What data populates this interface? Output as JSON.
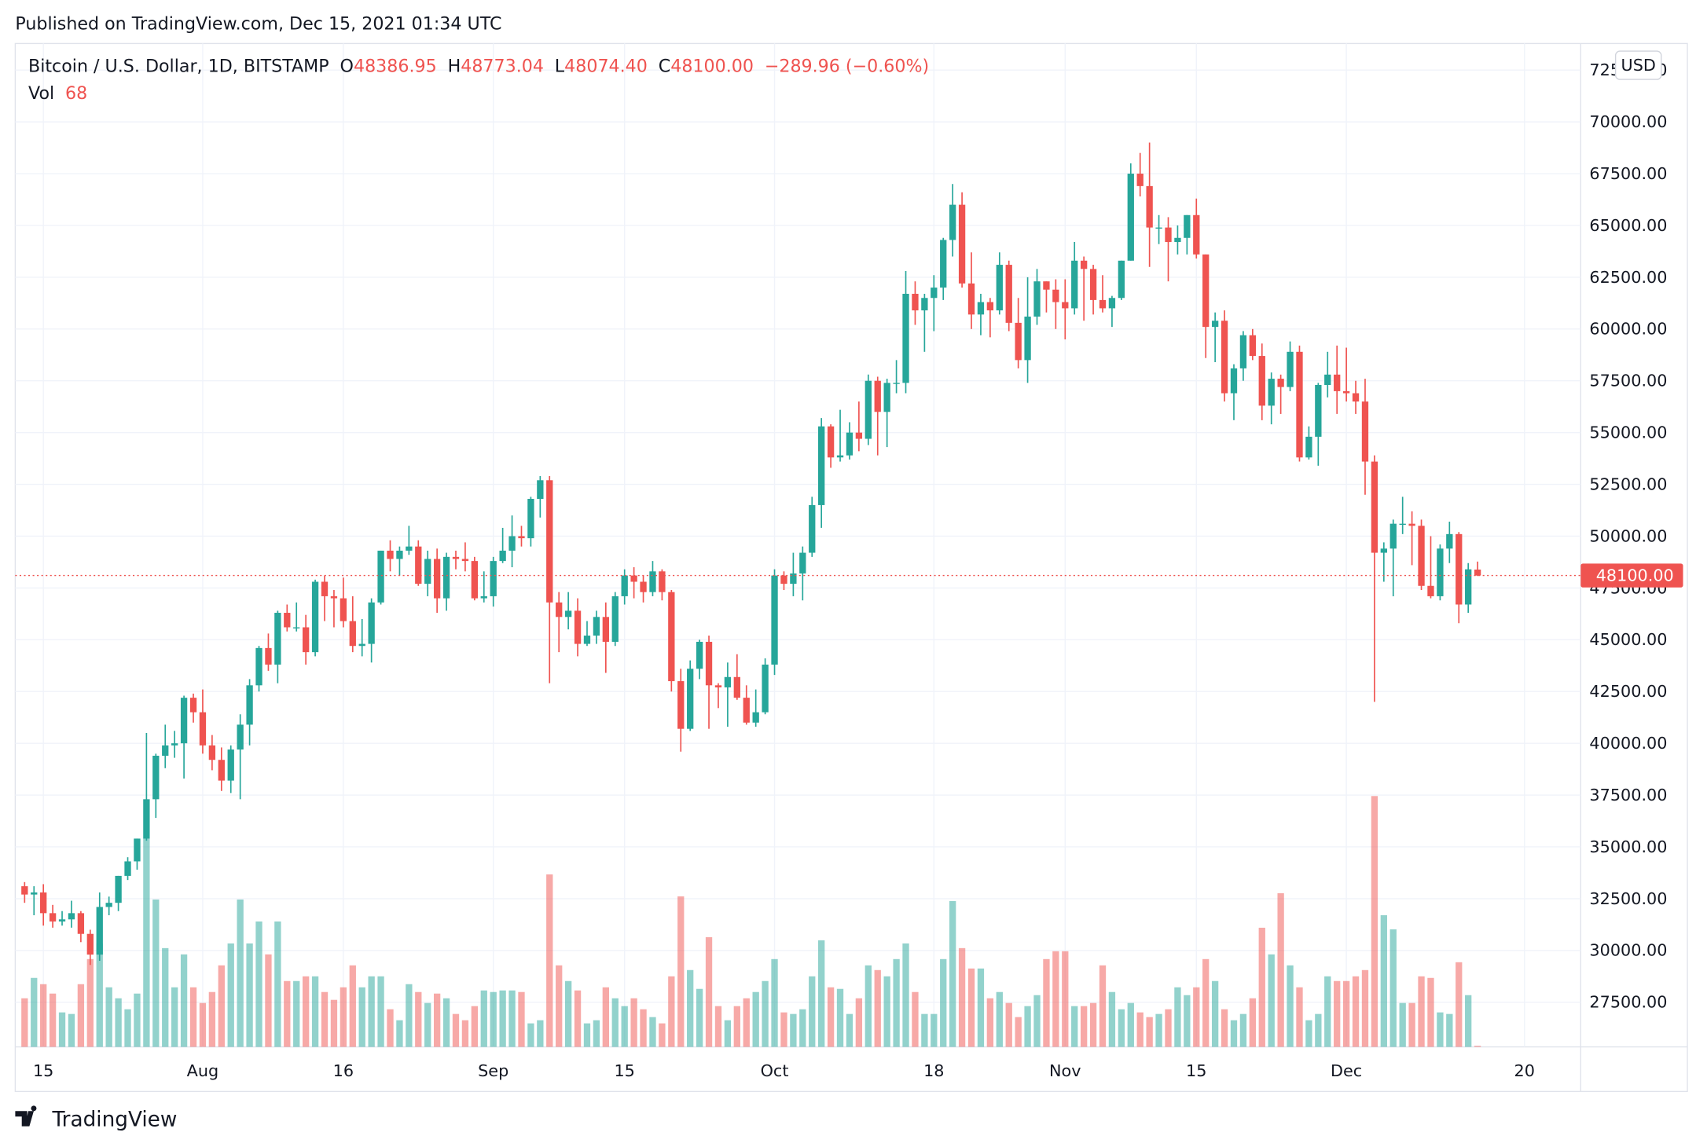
{
  "header": {
    "published": "Published on TradingView.com, Dec 15, 2021 01:34 UTC",
    "brand": "TradingView"
  },
  "chart_data": {
    "type": "candlestick",
    "legend": {
      "symbol": "Bitcoin / U.S. Dollar, 1D, BITSTAMP",
      "o_label": "O",
      "o": "48386.95",
      "h_label": "H",
      "h": "48773.04",
      "l_label": "L",
      "l": "48074.40",
      "c_label": "C",
      "c": "48100.00",
      "change": "−289.96 (−0.60%)",
      "vol_label": "Vol",
      "vol": "68"
    },
    "currency": "USD",
    "up_color": "#26a69a",
    "down_color": "#ef5350",
    "x": [
      "2021-07-13",
      "2021-07-14",
      "2021-07-15",
      "2021-07-16",
      "2021-07-17",
      "2021-07-18",
      "2021-07-19",
      "2021-07-20",
      "2021-07-21",
      "2021-07-22",
      "2021-07-23",
      "2021-07-24",
      "2021-07-25",
      "2021-07-26",
      "2021-07-27",
      "2021-07-28",
      "2021-07-29",
      "2021-07-30",
      "2021-07-31",
      "2021-08-01",
      "2021-08-02",
      "2021-08-03",
      "2021-08-04",
      "2021-08-05",
      "2021-08-06",
      "2021-08-07",
      "2021-08-08",
      "2021-08-09",
      "2021-08-10",
      "2021-08-11",
      "2021-08-12",
      "2021-08-13",
      "2021-08-14",
      "2021-08-15",
      "2021-08-16",
      "2021-08-17",
      "2021-08-18",
      "2021-08-19",
      "2021-08-20",
      "2021-08-21",
      "2021-08-22",
      "2021-08-23",
      "2021-08-24",
      "2021-08-25",
      "2021-08-26",
      "2021-08-27",
      "2021-08-28",
      "2021-08-29",
      "2021-08-30",
      "2021-08-31",
      "2021-09-01",
      "2021-09-02",
      "2021-09-03",
      "2021-09-04",
      "2021-09-05",
      "2021-09-06",
      "2021-09-07",
      "2021-09-08",
      "2021-09-09",
      "2021-09-10",
      "2021-09-11",
      "2021-09-12",
      "2021-09-13",
      "2021-09-14",
      "2021-09-15",
      "2021-09-16",
      "2021-09-17",
      "2021-09-18",
      "2021-09-19",
      "2021-09-20",
      "2021-09-21",
      "2021-09-22",
      "2021-09-23",
      "2021-09-24",
      "2021-09-25",
      "2021-09-26",
      "2021-09-27",
      "2021-09-28",
      "2021-09-29",
      "2021-09-30",
      "2021-10-01",
      "2021-10-02",
      "2021-10-03",
      "2021-10-04",
      "2021-10-05",
      "2021-10-06",
      "2021-10-07",
      "2021-10-08",
      "2021-10-09",
      "2021-10-10",
      "2021-10-11",
      "2021-10-12",
      "2021-10-13",
      "2021-10-14",
      "2021-10-15",
      "2021-10-16",
      "2021-10-17",
      "2021-10-18",
      "2021-10-19",
      "2021-10-20",
      "2021-10-21",
      "2021-10-22",
      "2021-10-23",
      "2021-10-24",
      "2021-10-25",
      "2021-10-26",
      "2021-10-27",
      "2021-10-28",
      "2021-10-29",
      "2021-10-30",
      "2021-10-31",
      "2021-11-01",
      "2021-11-02",
      "2021-11-03",
      "2021-11-04",
      "2021-11-05",
      "2021-11-06",
      "2021-11-07",
      "2021-11-08",
      "2021-11-09",
      "2021-11-10",
      "2021-11-11",
      "2021-11-12",
      "2021-11-13",
      "2021-11-14",
      "2021-11-15",
      "2021-11-16",
      "2021-11-17",
      "2021-11-18",
      "2021-11-19",
      "2021-11-20",
      "2021-11-21",
      "2021-11-22",
      "2021-11-23",
      "2021-11-24",
      "2021-11-25",
      "2021-11-26",
      "2021-11-27",
      "2021-11-28",
      "2021-11-29",
      "2021-11-30",
      "2021-12-01",
      "2021-12-02",
      "2021-12-03",
      "2021-12-04",
      "2021-12-05",
      "2021-12-06",
      "2021-12-07",
      "2021-12-08",
      "2021-12-09",
      "2021-12-10",
      "2021-12-11",
      "2021-12-12",
      "2021-12-13",
      "2021-12-14",
      "2021-12-15"
    ],
    "open": [
      33100,
      32700,
      32800,
      31800,
      31400,
      31500,
      31800,
      30800,
      29800,
      32100,
      32300,
      33600,
      34300,
      35400,
      37300,
      39400,
      39900,
      40000,
      42200,
      41500,
      39900,
      39200,
      38200,
      39700,
      40900,
      42800,
      44600,
      43800,
      46300,
      45600,
      45600,
      44400,
      47800,
      47100,
      47000,
      45900,
      44700,
      44800,
      46800,
      49300,
      48900,
      49300,
      49500,
      47700,
      48900,
      47000,
      49000,
      48900,
      48800,
      47000,
      47100,
      48800,
      49300,
      50000,
      49900,
      51800,
      52700,
      46800,
      46100,
      46400,
      44800,
      45200,
      46100,
      44900,
      47100,
      48100,
      47800,
      47300,
      48300,
      47300,
      43000,
      40700,
      43600,
      44900,
      42800,
      42700,
      43200,
      42200,
      41000,
      41500,
      43800,
      48100,
      47700,
      48200,
      49200,
      51500,
      55300,
      53800,
      53900,
      55000,
      54700,
      57500,
      56000,
      57400,
      57400,
      61700,
      60900,
      61500,
      62000,
      64300,
      66000,
      62200,
      60700,
      61300,
      60900,
      63100,
      60300,
      58500,
      60600,
      62300,
      61900,
      61300,
      61000,
      63300,
      62900,
      61400,
      61000,
      61500,
      63300,
      67500,
      66900,
      64900,
      64900,
      64200,
      64400,
      65500,
      63600,
      60100,
      60400,
      56900,
      58100,
      59700,
      58700,
      56300,
      57600,
      57200,
      58900,
      53800,
      54800,
      57300,
      57800,
      57000,
      56900,
      56500,
      53600,
      49200,
      49400,
      50600,
      50600,
      50500,
      47600,
      47100,
      49400,
      50100,
      46700,
      48386.95
    ],
    "high": [
      33300,
      33100,
      33200,
      32200,
      31900,
      32400,
      31900,
      31000,
      32800,
      32600,
      33600,
      34500,
      35400,
      40500,
      39500,
      40900,
      40600,
      42300,
      42400,
      42600,
      40400,
      39800,
      39900,
      41400,
      43100,
      44700,
      45300,
      46400,
      46700,
      46800,
      46200,
      47900,
      48100,
      47400,
      48000,
      47100,
      46000,
      47000,
      49300,
      49800,
      49500,
      50500,
      49800,
      49300,
      49400,
      49200,
      49300,
      49700,
      49000,
      48300,
      49000,
      50400,
      51000,
      50500,
      51900,
      52900,
      52900,
      47300,
      47300,
      47000,
      45900,
      46400,
      46800,
      47300,
      48400,
      48500,
      48100,
      48800,
      48400,
      47400,
      43600,
      44000,
      45000,
      45200,
      42900,
      43900,
      44300,
      42800,
      42600,
      44100,
      48400,
      48300,
      49200,
      49500,
      51900,
      55700,
      55400,
      56100,
      55500,
      56500,
      57800,
      57700,
      57600,
      58500,
      62800,
      62300,
      61700,
      62600,
      64400,
      67000,
      66600,
      63700,
      61700,
      61500,
      63700,
      63300,
      61500,
      62500,
      62900,
      62300,
      62400,
      62400,
      64200,
      63500,
      63100,
      62600,
      61600,
      63300,
      68000,
      68500,
      69000,
      65500,
      65400,
      65000,
      65500,
      66300,
      63600,
      60800,
      60900,
      58300,
      59900,
      60000,
      59300,
      57900,
      57800,
      59400,
      59200,
      55300,
      57400,
      58900,
      59200,
      59100,
      57500,
      57600,
      53900,
      49700,
      50800,
      51900,
      51200,
      50800,
      50000,
      49600,
      50700,
      50200,
      48700,
      48773.04
    ],
    "low": [
      32300,
      31700,
      31200,
      31100,
      31200,
      31100,
      30400,
      29300,
      29500,
      31700,
      31900,
      33400,
      33900,
      35300,
      36400,
      38800,
      39300,
      38300,
      41000,
      39500,
      38700,
      37700,
      37600,
      37300,
      39900,
      42500,
      43500,
      42900,
      45400,
      45400,
      43800,
      44200,
      45900,
      45600,
      45600,
      44400,
      44200,
      43900,
      46700,
      48300,
      48100,
      49100,
      47600,
      47100,
      46300,
      46400,
      48400,
      48300,
      46900,
      46800,
      46600,
      48700,
      48500,
      49500,
      49500,
      50900,
      42900,
      44400,
      45500,
      44200,
      44700,
      44800,
      43400,
      44700,
      46700,
      47000,
      46800,
      47100,
      46900,
      42500,
      39600,
      40600,
      43100,
      40700,
      41700,
      40800,
      42100,
      40900,
      40800,
      41400,
      43300,
      47400,
      47100,
      46900,
      49000,
      50400,
      53300,
      53600,
      53700,
      54100,
      54400,
      53900,
      54300,
      56900,
      56900,
      60200,
      58900,
      59900,
      61400,
      63500,
      62000,
      60000,
      59700,
      59600,
      60700,
      59900,
      58100,
      57400,
      60200,
      60800,
      60000,
      59500,
      60700,
      60400,
      60700,
      60800,
      60100,
      61400,
      63300,
      66400,
      63000,
      64100,
      62300,
      63600,
      63600,
      63400,
      58600,
      58400,
      56500,
      55600,
      57500,
      58500,
      55600,
      55400,
      55900,
      57000,
      53600,
      53700,
      53400,
      56700,
      55900,
      56500,
      55900,
      52000,
      42000,
      47800,
      47100,
      50100,
      48600,
      47400,
      47000,
      46900,
      48700,
      45800,
      46300,
      48074.4
    ],
    "close": [
      32700,
      32800,
      31800,
      31400,
      31500,
      31800,
      30800,
      29800,
      32100,
      32300,
      33600,
      34300,
      35400,
      37300,
      39400,
      39900,
      40000,
      42200,
      41500,
      39900,
      39200,
      38200,
      39700,
      40900,
      42800,
      44600,
      43800,
      46300,
      45600,
      45600,
      44400,
      47800,
      47100,
      47000,
      45900,
      44700,
      44800,
      46800,
      49300,
      48900,
      49300,
      49500,
      47700,
      48900,
      47000,
      49000,
      48900,
      48800,
      47000,
      47100,
      48800,
      49300,
      50000,
      49900,
      51800,
      52700,
      46800,
      46100,
      46400,
      44800,
      45200,
      46100,
      44900,
      47100,
      48100,
      47800,
      47300,
      48300,
      47300,
      43000,
      40700,
      43600,
      44900,
      42800,
      42700,
      43200,
      42200,
      41000,
      41500,
      43800,
      48100,
      47700,
      48200,
      49200,
      51500,
      55300,
      53800,
      53900,
      55000,
      54700,
      57500,
      56000,
      57400,
      57400,
      61700,
      60900,
      61500,
      62000,
      64300,
      66000,
      62200,
      60700,
      61300,
      60900,
      63100,
      60300,
      58500,
      60600,
      62300,
      61900,
      61300,
      61000,
      63300,
      62900,
      61400,
      61000,
      61500,
      63300,
      67500,
      66900,
      64900,
      64900,
      64200,
      64400,
      65500,
      63600,
      60100,
      60400,
      56900,
      58100,
      59700,
      58700,
      56300,
      57600,
      57200,
      58900,
      53800,
      54800,
      57300,
      57800,
      57000,
      56900,
      56500,
      53600,
      49200,
      49400,
      50600,
      50600,
      50500,
      47600,
      47100,
      49400,
      50100,
      46700,
      48400,
      48100
    ],
    "volume": [
      3100,
      4400,
      4000,
      3400,
      2200,
      2100,
      4000,
      5600,
      6600,
      3800,
      3100,
      2400,
      3400,
      13300,
      9400,
      6300,
      3800,
      5900,
      3800,
      2800,
      3500,
      5200,
      6600,
      9400,
      6600,
      8000,
      5900,
      8000,
      4200,
      4200,
      4500,
      4500,
      3500,
      3000,
      3800,
      5200,
      3800,
      4500,
      4500,
      2400,
      1700,
      4000,
      3500,
      2800,
      3400,
      3100,
      2100,
      1700,
      2600,
      3600,
      3500,
      3600,
      3600,
      3500,
      1500,
      1700,
      11000,
      5200,
      4200,
      3600,
      1500,
      1700,
      3800,
      3100,
      2600,
      3100,
      2400,
      1900,
      1500,
      4500,
      9600,
      4900,
      3700,
      7000,
      2600,
      1700,
      2600,
      3100,
      3500,
      4200,
      5600,
      2200,
      2100,
      2400,
      4500,
      6800,
      3800,
      3700,
      2100,
      3100,
      5200,
      4900,
      4500,
      5600,
      6600,
      3500,
      2100,
      2100,
      5600,
      9300,
      6300,
      5000,
      5000,
      3100,
      3500,
      2800,
      1900,
      2600,
      3300,
      5600,
      6100,
      6100,
      2600,
      2600,
      2800,
      5200,
      3500,
      2400,
      2800,
      2200,
      1900,
      2100,
      2400,
      3800,
      3300,
      3800,
      5600,
      4200,
      2400,
      1700,
      2100,
      3100,
      7600,
      5900,
      9800,
      5200,
      3800,
      1700,
      2100,
      4500,
      4200,
      4200,
      4500,
      4900,
      16000,
      8400,
      7500,
      2800,
      2800,
      4500,
      4400,
      2200,
      2100,
      5400,
      3300,
      68
    ],
    "volume_ylim": [
      0,
      64000
    ],
    "ylim": [
      25345,
      73782
    ],
    "yticks": [
      {
        "value": 27500,
        "label": "27500.00"
      },
      {
        "value": 30000,
        "label": "30000.00"
      },
      {
        "value": 32500,
        "label": "32500.00"
      },
      {
        "value": 35000,
        "label": "35000.00"
      },
      {
        "value": 37500,
        "label": "37500.00"
      },
      {
        "value": 40000,
        "label": "40000.00"
      },
      {
        "value": 42500,
        "label": "42500.00"
      },
      {
        "value": 45000,
        "label": "45000.00"
      },
      {
        "value": 47500,
        "label": "47500.00"
      },
      {
        "value": 50000,
        "label": "50000.00"
      },
      {
        "value": 52500,
        "label": "52500.00"
      },
      {
        "value": 55000,
        "label": "55000.00"
      },
      {
        "value": 57500,
        "label": "57500.00"
      },
      {
        "value": 60000,
        "label": "60000.00"
      },
      {
        "value": 62500,
        "label": "62500.00"
      },
      {
        "value": 65000,
        "label": "65000.00"
      },
      {
        "value": 67500,
        "label": "67500.00"
      },
      {
        "value": 70000,
        "label": "70000.00"
      },
      {
        "value": 72500,
        "label": "72500.00"
      }
    ],
    "xlim": [
      "2021-07-12",
      "2021-12-26"
    ],
    "xticks": [
      {
        "value": "2021-07-15",
        "label": "15"
      },
      {
        "value": "2021-08-01",
        "label": "Aug"
      },
      {
        "value": "2021-08-16",
        "label": "16"
      },
      {
        "value": "2021-09-01",
        "label": "Sep"
      },
      {
        "value": "2021-09-15",
        "label": "15"
      },
      {
        "value": "2021-10-01",
        "label": "Oct"
      },
      {
        "value": "2021-10-18",
        "label": "18"
      },
      {
        "value": "2021-11-01",
        "label": "Nov"
      },
      {
        "value": "2021-11-15",
        "label": "15"
      },
      {
        "value": "2021-12-01",
        "label": "Dec"
      },
      {
        "value": "2021-12-20",
        "label": "20"
      }
    ],
    "last_price": {
      "value": 48100,
      "label": "48100.00"
    },
    "grid": true
  }
}
